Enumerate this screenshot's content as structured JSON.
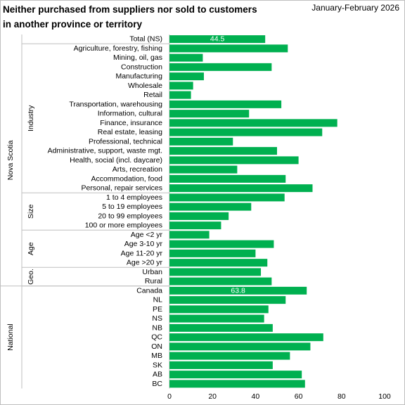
{
  "header": {
    "title_line1": "Neither purchased  from suppliers nor sold  to customers",
    "title_line2": "in another province or territory",
    "period": "January-February  2026"
  },
  "chart_data": {
    "type": "bar",
    "orientation": "horizontal",
    "bar_color": "#00b050",
    "grid": false,
    "xlim": [
      0,
      100
    ],
    "xticks": [
      "0",
      "20",
      "40",
      "60",
      "80",
      "100"
    ],
    "categories": [
      "Total (NS)",
      "Agriculture, forestry, fishing",
      "Mining, oil, gas",
      "Construction",
      "Manufacturing",
      "Wholesale",
      "Retail",
      "Transportation, warehousing",
      "Information, cultural",
      "Finance, insurance",
      "Real estate, leasing",
      "Professional, technical",
      "Administrative, support, waste mgt.",
      "Health, social (incl. daycare)",
      "Arts, recreation",
      "Accommodation, food",
      "Personal, repair services",
      "1 to 4 employees",
      "5 to 19 employees",
      "20 to 99 employees",
      "100 or more employees",
      "Age <2 yr",
      "Age 3-10 yr",
      "Age 11-20 yr",
      "Age >20 yr",
      "Urban",
      "Rural",
      "Canada",
      "NL",
      "PE",
      "NS",
      "NB",
      "QC",
      "ON",
      "MB",
      "SK",
      "AB",
      "BC"
    ],
    "values": [
      44.5,
      55.0,
      15.5,
      47.5,
      16.0,
      11.0,
      10.0,
      52.0,
      37.0,
      78.0,
      71.0,
      29.5,
      50.0,
      60.0,
      31.5,
      54.0,
      66.5,
      53.5,
      38.0,
      27.5,
      24.0,
      18.5,
      48.5,
      40.0,
      45.5,
      42.5,
      47.5,
      63.8,
      54.0,
      46.0,
      44.0,
      48.0,
      71.5,
      65.5,
      56.0,
      48.0,
      61.5,
      63.0
    ],
    "data_labels": [
      {
        "index": 0,
        "text": "44.5"
      },
      {
        "index": 27,
        "text": "63.8"
      }
    ],
    "groups": [
      {
        "label": "Industry",
        "start": 1,
        "end": 16,
        "outer": "Nova Scotia"
      },
      {
        "label": "Size",
        "start": 17,
        "end": 20,
        "outer": "Nova Scotia"
      },
      {
        "label": "Age",
        "start": 21,
        "end": 24,
        "outer": "Nova Scotia"
      },
      {
        "label": "Geo.",
        "start": 25,
        "end": 26,
        "outer": "Nova Scotia"
      }
    ],
    "outer_groups": [
      {
        "label": "Nova Scotia",
        "start": 0,
        "end": 26
      },
      {
        "label": "National",
        "start": 27,
        "end": 37
      }
    ]
  }
}
